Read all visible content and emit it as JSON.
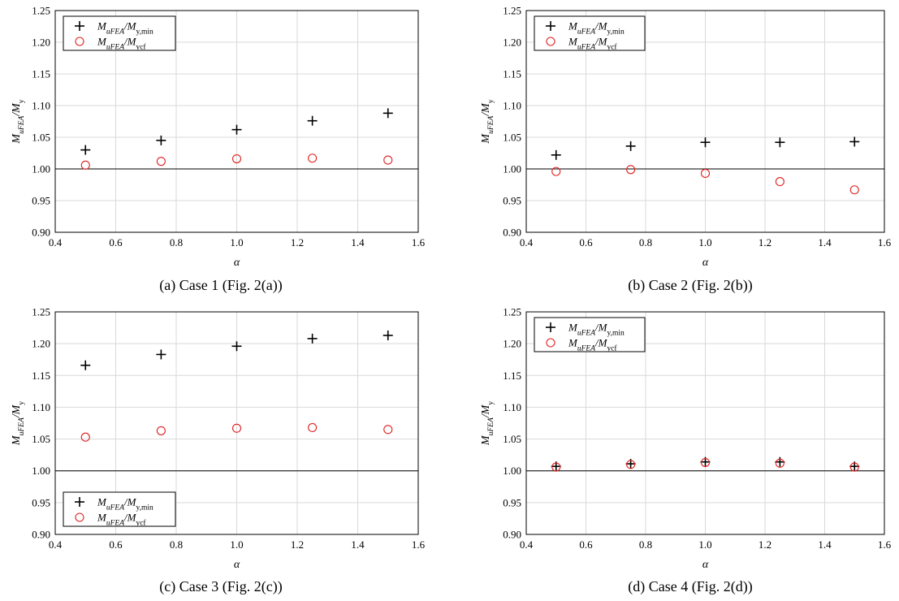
{
  "chart_data": [
    {
      "type": "scatter",
      "caption": "(a) Case 1 (Fig. 2(a))",
      "xlabel": "α",
      "ylabel": {
        "base": "M",
        "sub": "uFEA",
        "sep": "/M",
        "sub2": "y"
      },
      "xlim": [
        0.4,
        1.6
      ],
      "ylim": [
        0.9,
        1.25
      ],
      "xticks": [
        "0.4",
        "0.6",
        "0.8",
        "1.0",
        "1.2",
        "1.4",
        "1.6"
      ],
      "yticks": [
        "0.90",
        "0.95",
        "1.00",
        "1.05",
        "1.10",
        "1.15",
        "1.20",
        "1.25"
      ],
      "grid": true,
      "reference_line": 1.0,
      "legend_position": "top-left",
      "series": [
        {
          "name": "M_uFEA/M_y,min",
          "legend": {
            "base": "M",
            "sub": "uFEA",
            "sep": "/M",
            "sub2": "y,min"
          },
          "marker": "plus",
          "color": "#000000",
          "x": [
            0.5,
            0.75,
            1.0,
            1.25,
            1.5
          ],
          "y": [
            1.03,
            1.045,
            1.062,
            1.076,
            1.088
          ]
        },
        {
          "name": "M_uFEA/M_ycf",
          "legend": {
            "base": "M",
            "sub": "uFEA",
            "sep": "/M",
            "sub2": "ycf"
          },
          "marker": "circle",
          "color": "#e02020",
          "x": [
            0.5,
            0.75,
            1.0,
            1.25,
            1.5
          ],
          "y": [
            1.006,
            1.012,
            1.016,
            1.017,
            1.014
          ]
        }
      ]
    },
    {
      "type": "scatter",
      "caption": "(b) Case 2 (Fig. 2(b))",
      "xlabel": "α",
      "ylabel": {
        "base": "M",
        "sub": "uFEA",
        "sep": "/M",
        "sub2": "y"
      },
      "xlim": [
        0.4,
        1.6
      ],
      "ylim": [
        0.9,
        1.25
      ],
      "xticks": [
        "0.4",
        "0.6",
        "0.8",
        "1.0",
        "1.2",
        "1.4",
        "1.6"
      ],
      "yticks": [
        "0.90",
        "0.95",
        "1.00",
        "1.05",
        "1.10",
        "1.15",
        "1.20",
        "1.25"
      ],
      "grid": true,
      "reference_line": 1.0,
      "legend_position": "top-left",
      "series": [
        {
          "name": "M_uFEA/M_y,min",
          "legend": {
            "base": "M",
            "sub": "uFEA",
            "sep": "/M",
            "sub2": "y,min"
          },
          "marker": "plus",
          "color": "#000000",
          "x": [
            0.5,
            0.75,
            1.0,
            1.25,
            1.5
          ],
          "y": [
            1.022,
            1.036,
            1.042,
            1.042,
            1.043
          ]
        },
        {
          "name": "M_uFEA/M_ycf",
          "legend": {
            "base": "M",
            "sub": "uFEA",
            "sep": "/M",
            "sub2": "ycf"
          },
          "marker": "circle",
          "color": "#e02020",
          "x": [
            0.5,
            0.75,
            1.0,
            1.25,
            1.5
          ],
          "y": [
            0.996,
            0.999,
            0.993,
            0.98,
            0.967
          ]
        }
      ]
    },
    {
      "type": "scatter",
      "caption": "(c) Case 3 (Fig. 2(c))",
      "xlabel": "α",
      "ylabel": {
        "base": "M",
        "sub": "uFEA",
        "sep": "/M",
        "sub2": "y"
      },
      "xlim": [
        0.4,
        1.6
      ],
      "ylim": [
        0.9,
        1.25
      ],
      "xticks": [
        "0.4",
        "0.6",
        "0.8",
        "1.0",
        "1.2",
        "1.4",
        "1.6"
      ],
      "yticks": [
        "0.90",
        "0.95",
        "1.00",
        "1.05",
        "1.10",
        "1.15",
        "1.20",
        "1.25"
      ],
      "grid": true,
      "reference_line": 1.0,
      "legend_position": "bottom-left",
      "series": [
        {
          "name": "M_uFEA/M_y,min",
          "legend": {
            "base": "M",
            "sub": "uFEA",
            "sep": "/M",
            "sub2": "y,min"
          },
          "marker": "plus",
          "color": "#000000",
          "x": [
            0.5,
            0.75,
            1.0,
            1.25,
            1.5
          ],
          "y": [
            1.166,
            1.183,
            1.196,
            1.208,
            1.213
          ]
        },
        {
          "name": "M_uFEA/M_ycf",
          "legend": {
            "base": "M",
            "sub": "uFEA",
            "sep": "/M",
            "sub2": "ycf"
          },
          "marker": "circle",
          "color": "#e02020",
          "x": [
            0.5,
            0.75,
            1.0,
            1.25,
            1.5
          ],
          "y": [
            1.053,
            1.063,
            1.067,
            1.068,
            1.065
          ]
        }
      ]
    },
    {
      "type": "scatter",
      "caption": "(d) Case 4 (Fig. 2(d))",
      "xlabel": "α",
      "ylabel": {
        "base": "M",
        "sub": "uFEA",
        "sep": "/M",
        "sub2": "y"
      },
      "xlim": [
        0.4,
        1.6
      ],
      "ylim": [
        0.9,
        1.25
      ],
      "xticks": [
        "0.4",
        "0.6",
        "0.8",
        "1.0",
        "1.2",
        "1.4",
        "1.6"
      ],
      "yticks": [
        "0.90",
        "0.95",
        "1.00",
        "1.05",
        "1.10",
        "1.15",
        "1.20",
        "1.25"
      ],
      "grid": true,
      "reference_line": 1.0,
      "legend_position": "top-left",
      "series": [
        {
          "name": "M_uFEA/M_y,min",
          "legend": {
            "base": "M",
            "sub": "uFEA",
            "sep": "/M",
            "sub2": "y,min"
          },
          "marker": "plus",
          "color": "#000000",
          "x": [
            0.5,
            0.75,
            1.0,
            1.25,
            1.5
          ],
          "y": [
            1.007,
            1.011,
            1.014,
            1.014,
            1.007
          ]
        },
        {
          "name": "M_uFEA/M_ycf",
          "legend": {
            "base": "M",
            "sub": "uFEA",
            "sep": "/M",
            "sub2": "ycf"
          },
          "marker": "circle",
          "color": "#e02020",
          "x": [
            0.5,
            0.75,
            1.0,
            1.25,
            1.5
          ],
          "y": [
            1.006,
            1.01,
            1.013,
            1.012,
            1.006
          ]
        }
      ]
    }
  ]
}
